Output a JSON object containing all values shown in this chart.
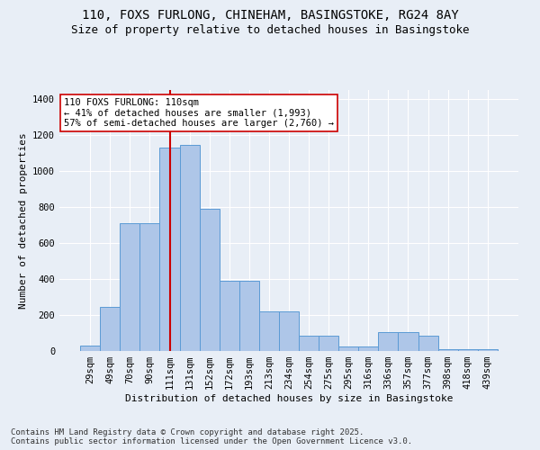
{
  "title1": "110, FOXS FURLONG, CHINEHAM, BASINGSTOKE, RG24 8AY",
  "title2": "Size of property relative to detached houses in Basingstoke",
  "xlabel": "Distribution of detached houses by size in Basingstoke",
  "ylabel": "Number of detached properties",
  "categories": [
    "29sqm",
    "49sqm",
    "70sqm",
    "90sqm",
    "111sqm",
    "131sqm",
    "152sqm",
    "172sqm",
    "193sqm",
    "213sqm",
    "234sqm",
    "254sqm",
    "275sqm",
    "295sqm",
    "316sqm",
    "336sqm",
    "357sqm",
    "377sqm",
    "398sqm",
    "418sqm",
    "439sqm"
  ],
  "bar_values": [
    30,
    245,
    710,
    710,
    1130,
    1145,
    790,
    390,
    390,
    220,
    220,
    85,
    85,
    25,
    25,
    105,
    105,
    85,
    10,
    10,
    10
  ],
  "bar_color": "#aec6e8",
  "bar_edge_color": "#5b9bd5",
  "vline_x": 4,
  "vline_color": "#cc0000",
  "annotation_text": "110 FOXS FURLONG: 110sqm\n← 41% of detached houses are smaller (1,993)\n57% of semi-detached houses are larger (2,760) →",
  "annotation_box_color": "#ffffff",
  "annotation_box_edge": "#cc0000",
  "ylim": [
    0,
    1450
  ],
  "yticks": [
    0,
    200,
    400,
    600,
    800,
    1000,
    1200,
    1400
  ],
  "footer1": "Contains HM Land Registry data © Crown copyright and database right 2025.",
  "footer2": "Contains public sector information licensed under the Open Government Licence v3.0.",
  "bg_color": "#e8eef6",
  "title_fontsize": 10,
  "subtitle_fontsize": 9,
  "axis_fontsize": 8,
  "tick_fontsize": 7.5,
  "footer_fontsize": 6.5
}
